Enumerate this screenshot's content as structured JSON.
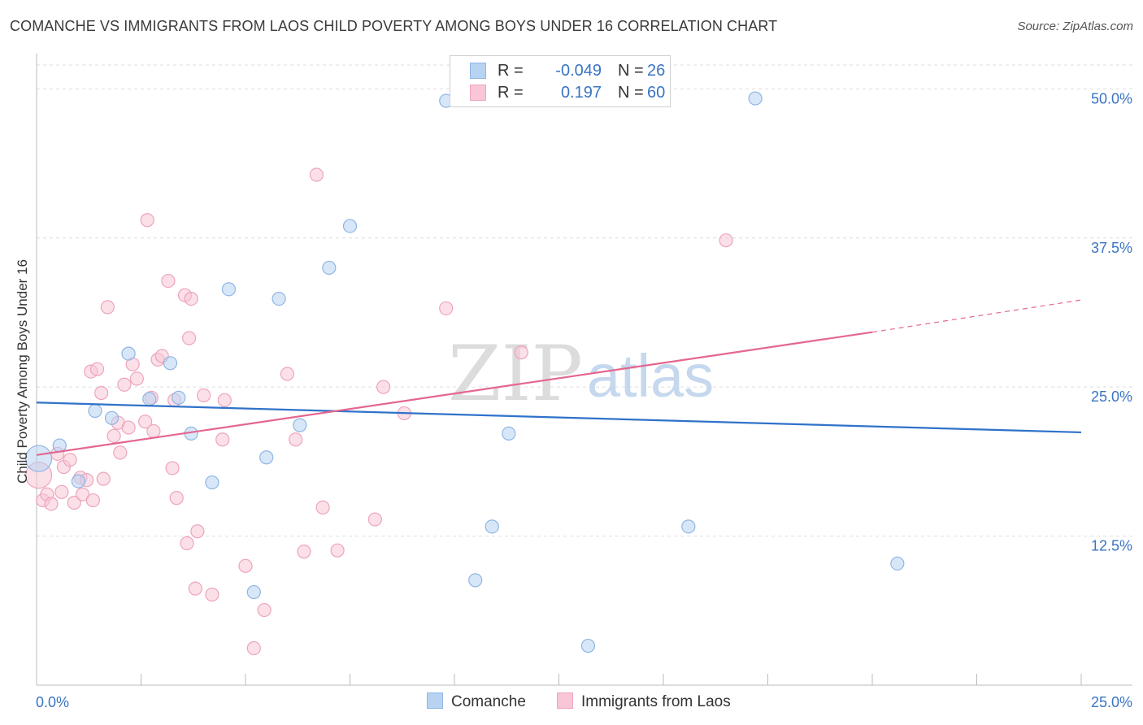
{
  "title": "COMANCHE VS IMMIGRANTS FROM LAOS CHILD POVERTY AMONG BOYS UNDER 16 CORRELATION CHART",
  "source": "Source: ZipAtlas.com",
  "watermark": {
    "zip": "ZIP",
    "atlas": "atlas"
  },
  "legend": {
    "r_label": "R =",
    "n_label": "N =",
    "rows": [
      {
        "name": "Comanche",
        "r": "-0.049",
        "n": "26"
      },
      {
        "name": "Immigrants from Laos",
        "r": "0.197",
        "n": "60"
      }
    ]
  },
  "colors": {
    "comanche_fill": "#b8d3f2",
    "comanche_stroke": "#8fb5e3",
    "comanche_line": "#2f72c9",
    "laos_fill": "#f8c6d6",
    "laos_stroke": "#eea4bc",
    "laos_line": "#e4668f",
    "axis_label": "#3a74c4",
    "grid": "#dddddd"
  },
  "chart_data": {
    "type": "scatter",
    "title": "COMANCHE VS IMMIGRANTS FROM LAOS CHILD POVERTY AMONG BOYS UNDER 16 CORRELATION CHART",
    "xlabel": "",
    "ylabel": "Child Poverty Among Boys Under 16",
    "xlim": [
      0,
      25
    ],
    "ylim": [
      0,
      52
    ],
    "x_tick_labels": [
      "0.0%",
      "25.0%"
    ],
    "y_ticks": [
      12.5,
      25.0,
      37.5,
      50.0
    ],
    "y_tick_labels": [
      "12.5%",
      "25.0%",
      "37.5%",
      "50.0%"
    ],
    "grid": true,
    "series": [
      {
        "name": "Comanche",
        "points": [
          [
            0.05,
            19.0
          ],
          [
            0.55,
            20.1
          ],
          [
            1.0,
            17.1
          ],
          [
            1.4,
            23.0
          ],
          [
            1.8,
            22.4
          ],
          [
            2.2,
            27.8
          ],
          [
            2.7,
            24.0
          ],
          [
            3.2,
            27.0
          ],
          [
            3.4,
            24.1
          ],
          [
            3.7,
            21.1
          ],
          [
            4.2,
            17.0
          ],
          [
            4.6,
            33.2
          ],
          [
            5.2,
            7.8
          ],
          [
            5.5,
            19.1
          ],
          [
            5.8,
            32.4
          ],
          [
            6.3,
            21.8
          ],
          [
            7.0,
            35.0
          ],
          [
            7.5,
            38.5
          ],
          [
            9.8,
            49.0
          ],
          [
            10.5,
            8.8
          ],
          [
            10.9,
            13.3
          ],
          [
            11.3,
            21.1
          ],
          [
            13.2,
            3.3
          ],
          [
            15.6,
            13.3
          ],
          [
            17.2,
            49.2
          ],
          [
            20.6,
            10.2
          ]
        ],
        "trend": {
          "x": [
            0,
            25
          ],
          "y": [
            23.7,
            21.2
          ]
        }
      },
      {
        "name": "Immigrants from Laos",
        "points": [
          [
            0.05,
            17.6
          ],
          [
            0.15,
            15.5
          ],
          [
            0.25,
            16.0
          ],
          [
            0.35,
            15.2
          ],
          [
            0.5,
            19.4
          ],
          [
            0.6,
            16.2
          ],
          [
            0.65,
            18.3
          ],
          [
            0.8,
            18.9
          ],
          [
            0.9,
            15.3
          ],
          [
            1.05,
            17.4
          ],
          [
            1.1,
            16.0
          ],
          [
            1.2,
            17.2
          ],
          [
            1.3,
            26.3
          ],
          [
            1.35,
            15.5
          ],
          [
            1.45,
            26.5
          ],
          [
            1.55,
            24.5
          ],
          [
            1.6,
            17.3
          ],
          [
            1.7,
            31.7
          ],
          [
            1.85,
            20.9
          ],
          [
            1.95,
            22.0
          ],
          [
            2.0,
            19.5
          ],
          [
            2.1,
            25.2
          ],
          [
            2.2,
            21.6
          ],
          [
            2.3,
            26.9
          ],
          [
            2.4,
            25.7
          ],
          [
            2.6,
            22.1
          ],
          [
            2.65,
            39.0
          ],
          [
            2.75,
            24.1
          ],
          [
            2.8,
            21.3
          ],
          [
            2.9,
            27.3
          ],
          [
            3.0,
            27.6
          ],
          [
            3.15,
            33.9
          ],
          [
            3.25,
            18.2
          ],
          [
            3.3,
            23.9
          ],
          [
            3.35,
            15.7
          ],
          [
            3.55,
            32.7
          ],
          [
            3.6,
            11.9
          ],
          [
            3.65,
            29.1
          ],
          [
            3.7,
            32.4
          ],
          [
            3.8,
            8.1
          ],
          [
            3.85,
            12.9
          ],
          [
            4.0,
            24.3
          ],
          [
            4.2,
            7.6
          ],
          [
            4.45,
            20.6
          ],
          [
            4.5,
            23.9
          ],
          [
            5.0,
            10.0
          ],
          [
            5.2,
            3.1
          ],
          [
            5.45,
            6.3
          ],
          [
            6.0,
            26.1
          ],
          [
            6.2,
            20.6
          ],
          [
            6.4,
            11.2
          ],
          [
            6.7,
            42.8
          ],
          [
            6.85,
            14.9
          ],
          [
            7.2,
            11.3
          ],
          [
            8.1,
            13.9
          ],
          [
            8.3,
            25.0
          ],
          [
            8.8,
            22.8
          ],
          [
            9.8,
            31.6
          ],
          [
            11.6,
            27.9
          ],
          [
            16.5,
            37.3
          ]
        ],
        "trend": {
          "x": [
            0,
            20
          ],
          "y": [
            19.3,
            29.6
          ]
        },
        "trend_dashed_extension": {
          "x": [
            20,
            25
          ],
          "y": [
            29.6,
            32.3
          ]
        }
      }
    ]
  }
}
